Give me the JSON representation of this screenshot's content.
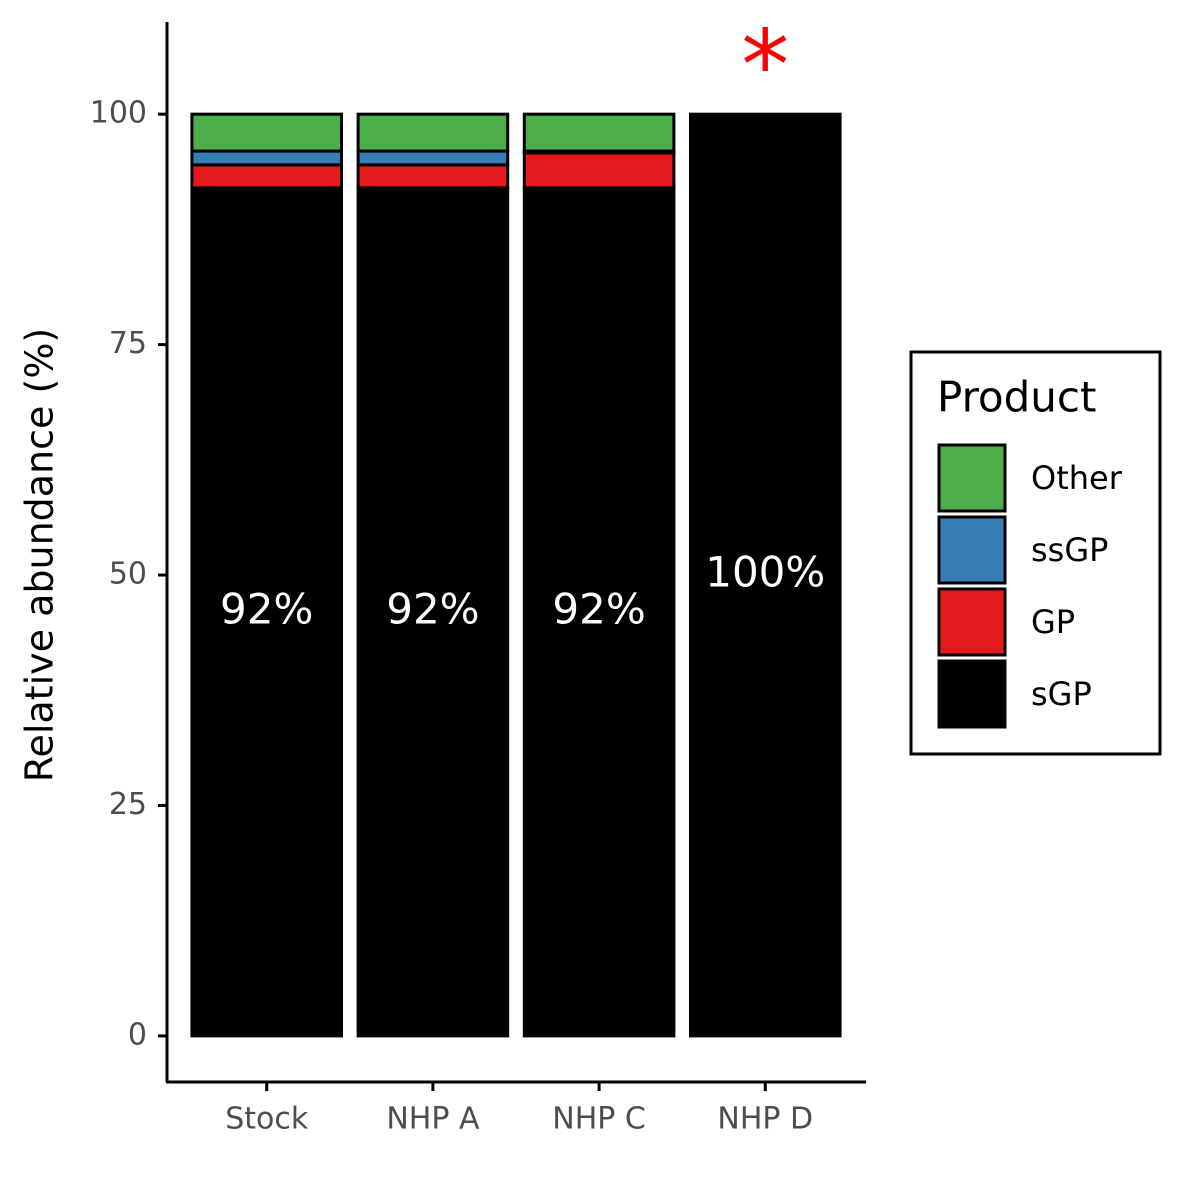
{
  "chart_data": {
    "type": "stacked_bar",
    "y_label": "Relative abundance (%)",
    "categories": [
      "Stock",
      "NHP A",
      "NHP C",
      "NHP D"
    ],
    "series": [
      {
        "name": "sGP",
        "color": "#000000",
        "values": [
          92,
          92,
          92,
          100
        ],
        "value_labels": [
          "92%",
          "92%",
          "92%",
          "100%"
        ]
      },
      {
        "name": "GP",
        "color": "#e41a1c",
        "values": [
          2.5,
          2.5,
          3.8,
          0
        ]
      },
      {
        "name": "ssGP",
        "color": "#377eb8",
        "values": [
          1.5,
          1.5,
          0.2,
          0
        ]
      },
      {
        "name": "Other",
        "color": "#4daf4a",
        "values": [
          4,
          4,
          4,
          0
        ]
      }
    ],
    "legend_title": "Product",
    "annotation": "*",
    "ylim": [
      -5,
      110
    ],
    "yticks": [
      0,
      25,
      50,
      75,
      100
    ],
    "grid": false
  }
}
